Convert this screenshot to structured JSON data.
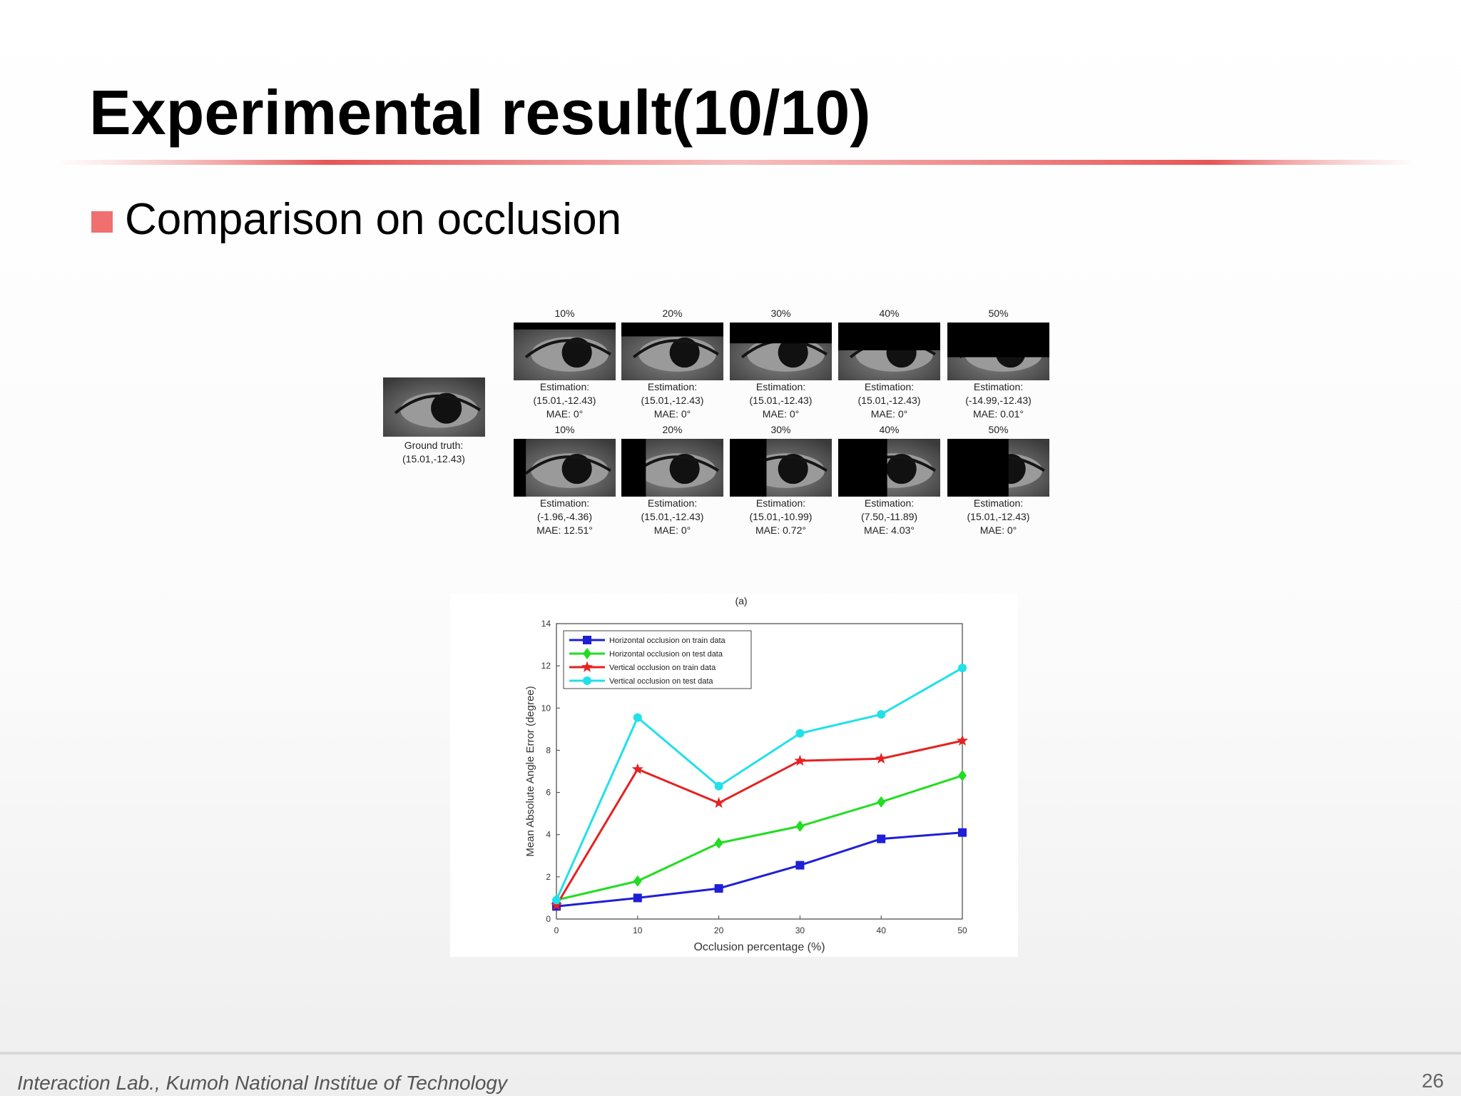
{
  "title": "Experimental result(10/10)",
  "bullet": "Comparison on occlusion",
  "figure": {
    "ground_truth": [
      "Ground truth:",
      "(15.01,-12.43)"
    ],
    "rows": [
      {
        "panels": [
          {
            "label": "10%",
            "estimation": [
              "Estimation:",
              "(15.01,-12.43)",
              "MAE: 0°"
            ]
          },
          {
            "label": "20%",
            "estimation": [
              "Estimation:",
              "(15.01,-12.43)",
              "MAE: 0°"
            ]
          },
          {
            "label": "30%",
            "estimation": [
              "Estimation:",
              "(15.01,-12.43)",
              "MAE: 0°"
            ]
          },
          {
            "label": "40%",
            "estimation": [
              "Estimation:",
              "(15.01,-12.43)",
              "MAE: 0°"
            ]
          },
          {
            "label": "50%",
            "estimation": [
              "Estimation:",
              "(-14.99,-12.43)",
              "MAE: 0.01°"
            ]
          }
        ]
      },
      {
        "panels": [
          {
            "label": "10%",
            "estimation": [
              "Estimation:",
              "(-1.96,-4.36)",
              "MAE: 12.51°"
            ]
          },
          {
            "label": "20%",
            "estimation": [
              "Estimation:",
              "(15.01,-12.43)",
              "MAE: 0°"
            ]
          },
          {
            "label": "30%",
            "estimation": [
              "Estimation:",
              "(15.01,-10.99)",
              "MAE: 0.72°"
            ]
          },
          {
            "label": "40%",
            "estimation": [
              "Estimation:",
              "(7.50,-11.89)",
              "MAE: 4.03°"
            ]
          },
          {
            "label": "50%",
            "estimation": [
              "Estimation:",
              "(15.01,-12.43)",
              "MAE: 0°"
            ]
          }
        ]
      }
    ],
    "caption": "(a)"
  },
  "chart_data": {
    "type": "line",
    "x_label": "Occlusion percentage (%)",
    "y_label": "Mean Absolute Angle Error (degree)",
    "x": [
      0,
      10,
      20,
      30,
      40,
      50
    ],
    "series": [
      {
        "name": "Horizontal occlusion on train data",
        "color": "#1f1fd6",
        "marker": "square",
        "values": [
          0.6,
          1.0,
          1.45,
          2.55,
          3.8,
          4.1
        ]
      },
      {
        "name": "Horizontal occlusion on test data",
        "color": "#22dd22",
        "marker": "diamond",
        "values": [
          0.9,
          1.8,
          3.6,
          4.4,
          5.55,
          6.8
        ]
      },
      {
        "name": "Vertical occlusion on train data",
        "color": "#e52222",
        "marker": "star",
        "values": [
          0.65,
          7.1,
          5.5,
          7.5,
          7.6,
          8.45
        ]
      },
      {
        "name": "Vertical occlusion on test data",
        "color": "#22e0e8",
        "marker": "circle",
        "values": [
          0.9,
          9.55,
          6.3,
          8.8,
          9.7,
          11.9
        ]
      }
    ],
    "xlim": [
      0,
      50
    ],
    "xticks": [
      0,
      10,
      20,
      30,
      40,
      50
    ],
    "ylim": [
      0,
      14
    ],
    "yticks": [
      0,
      2,
      4,
      6,
      8,
      10,
      12,
      14
    ],
    "legend": "upper left"
  },
  "footer": "Interaction Lab., Kumoh National Institue of Technology",
  "page_number": "26"
}
